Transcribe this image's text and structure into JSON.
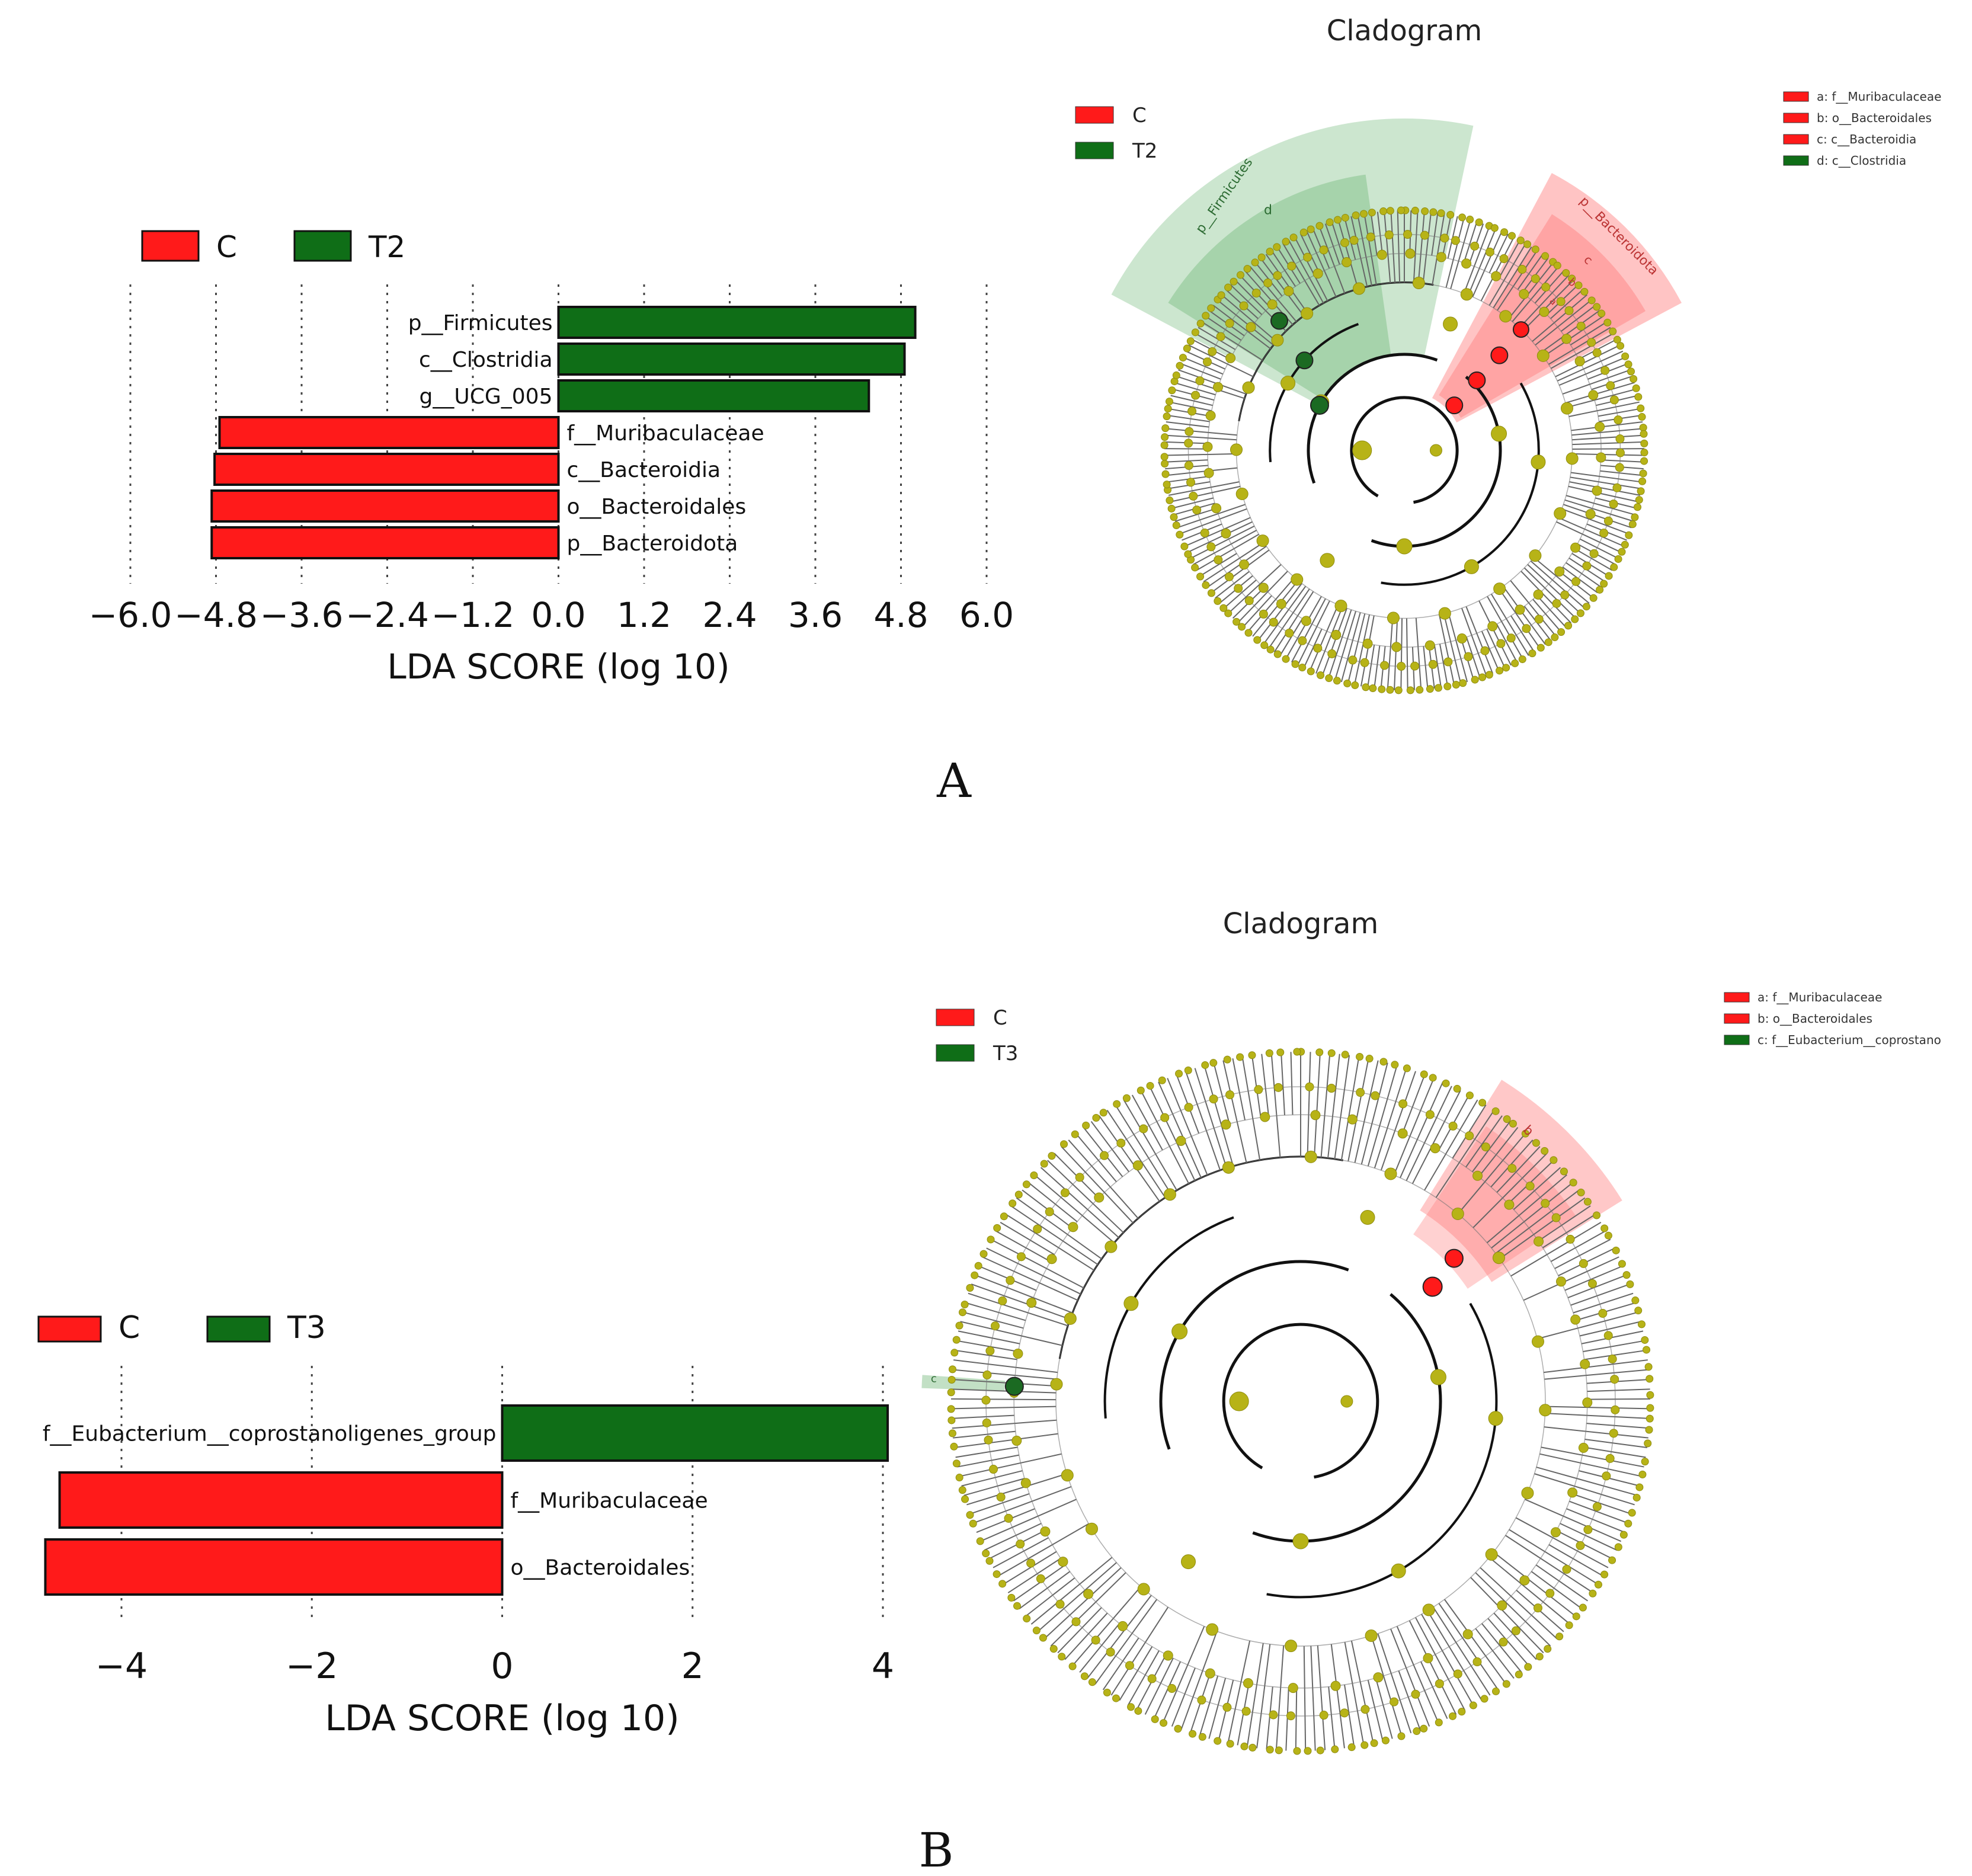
{
  "panels": [
    {
      "letter": "A",
      "chart_data": {
        "type": "bar",
        "orientation": "horizontal",
        "xlabel": "LDA SCORE (log 10)",
        "xlim": [
          -6.0,
          6.0
        ],
        "xticks": [
          -6.0,
          -4.8,
          -3.6,
          -2.4,
          -1.2,
          0.0,
          1.2,
          2.4,
          3.6,
          4.8,
          6.0
        ],
        "xtick_labels": [
          "−6.0",
          "−4.8",
          "−3.6",
          "−2.4",
          "−1.2",
          "0.0",
          "1.2",
          "2.4",
          "3.6",
          "4.8",
          "6.0"
        ],
        "legend": [
          {
            "label": "C",
            "color": "#ff1a1a"
          },
          {
            "label": "T2",
            "color": "#0f6e17"
          }
        ],
        "categories": [
          "p__Firmicutes",
          "c__Clostridia",
          "g__UCG_005",
          "f__Muribaculaceae",
          "c__Bacteroidia",
          "o__Bacteroidales",
          "p__Bacteroidota"
        ],
        "values": [
          5.0,
          4.85,
          4.35,
          -4.75,
          -4.82,
          -4.86,
          -4.86
        ],
        "groups": [
          "T2",
          "T2",
          "T2",
          "C",
          "C",
          "C",
          "C"
        ]
      },
      "cladogram": {
        "title": "Cladogram",
        "legend": [
          {
            "label": "C",
            "color": "#ff1a1a"
          },
          {
            "label": "T2",
            "color": "#0f6e17"
          }
        ],
        "key": [
          {
            "text": "a: f__Muribaculaceae",
            "color": "#ff1a1a"
          },
          {
            "text": "b: o__Bacteroidales",
            "color": "#ff1a1a"
          },
          {
            "text": "c: c__Bacteroidia",
            "color": "#ff1a1a"
          },
          {
            "text": "d: c__Clostridia",
            "color": "#0f6e17"
          }
        ],
        "labels": [
          "p__Firmicutes",
          "d",
          "p__Bacteroidota",
          "c",
          "b",
          "a"
        ]
      }
    },
    {
      "letter": "B",
      "chart_data": {
        "type": "bar",
        "orientation": "horizontal",
        "xlabel": "LDA SCORE (log 10)",
        "xlim": [
          -4,
          4
        ],
        "xticks": [
          -4,
          -2,
          0,
          2,
          4
        ],
        "xtick_labels": [
          "−4",
          "−2",
          "0",
          "2",
          "4"
        ],
        "legend": [
          {
            "label": "C",
            "color": "#ff1a1a"
          },
          {
            "label": "T3",
            "color": "#0f6e17"
          }
        ],
        "categories": [
          "f__Eubacterium__coprostanoligenes_group",
          "f__Muribaculaceae",
          "o__Bacteroidales"
        ],
        "values": [
          4.05,
          -4.65,
          -4.8
        ],
        "groups": [
          "T3",
          "C",
          "C"
        ]
      },
      "cladogram": {
        "title": "Cladogram",
        "legend": [
          {
            "label": "C",
            "color": "#ff1a1a"
          },
          {
            "label": "T3",
            "color": "#0f6e17"
          }
        ],
        "key": [
          {
            "text": "a: f__Muribaculaceae",
            "color": "#ff1a1a"
          },
          {
            "text": "b: o__Bacteroidales",
            "color": "#ff1a1a"
          },
          {
            "text": "c: f__Eubacterium__coprostano",
            "color": "#0f6e17"
          }
        ],
        "labels": [
          "b",
          "c"
        ]
      }
    }
  ]
}
